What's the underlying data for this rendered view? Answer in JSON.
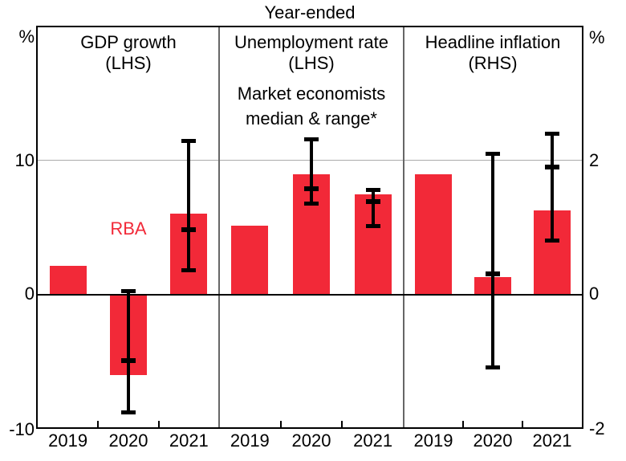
{
  "title": "Year-ended",
  "labels": {
    "rba": "RBA",
    "market_note_line1": "Market economists",
    "market_note_line2": "median & range*"
  },
  "colors": {
    "bar_red": "#F22938",
    "error_bar_black": "#000000",
    "gridline_gray": "#ABABAB",
    "panel_divider_gray": "#666666",
    "axis_black": "#000000"
  },
  "chart_data": {
    "type": "bar",
    "title": "Year-ended",
    "categories": [
      "2019",
      "2020",
      "2021"
    ],
    "grid": "single horizontal gridline at 10 (LHS) / 2 (RHS); solid zero line; framed plot box split into 3 panels",
    "legend_position": "in-panel text annotations (RBA in red, Market economists median & range* in black)",
    "axes": {
      "left": {
        "unit": "%",
        "range": [
          -10,
          20
        ],
        "ticks": [
          "10",
          "0",
          "-10"
        ],
        "tick_values": [
          10,
          0,
          -10
        ]
      },
      "right": {
        "unit": "%",
        "range": [
          -2,
          4
        ],
        "ticks": [
          "2",
          "0",
          "-2"
        ],
        "tick_values": [
          2,
          0,
          -2
        ]
      }
    },
    "series_labels": {
      "bars": "RBA",
      "ranges": "Market economists median & range*"
    },
    "panels": [
      {
        "title": "GDP growth",
        "axis_label": "(LHS)",
        "axis": "left",
        "rba_bars": [
          2.1,
          -6.1,
          6.0
        ],
        "market_ranges": [
          null,
          {
            "low": -8.9,
            "median": -5.0,
            "high": 0.2
          },
          {
            "low": 1.8,
            "median": 4.8,
            "high": 11.5
          }
        ]
      },
      {
        "title": "Unemployment rate",
        "axis_label": "(LHS)",
        "axis": "left",
        "rba_bars": [
          5.1,
          9.0,
          7.5
        ],
        "market_ranges": [
          null,
          {
            "low": 6.8,
            "median": 7.9,
            "high": 11.6
          },
          {
            "low": 5.1,
            "median": 6.9,
            "high": 7.8
          }
        ]
      },
      {
        "title": "Headline inflation",
        "axis_label": "(RHS)",
        "axis": "right",
        "rba_bars": [
          1.8,
          0.25,
          1.25
        ],
        "market_ranges": [
          null,
          {
            "low": -1.1,
            "median": 0.3,
            "high": 2.1
          },
          {
            "low": 0.8,
            "median": 1.9,
            "high": 2.4
          }
        ]
      }
    ]
  }
}
